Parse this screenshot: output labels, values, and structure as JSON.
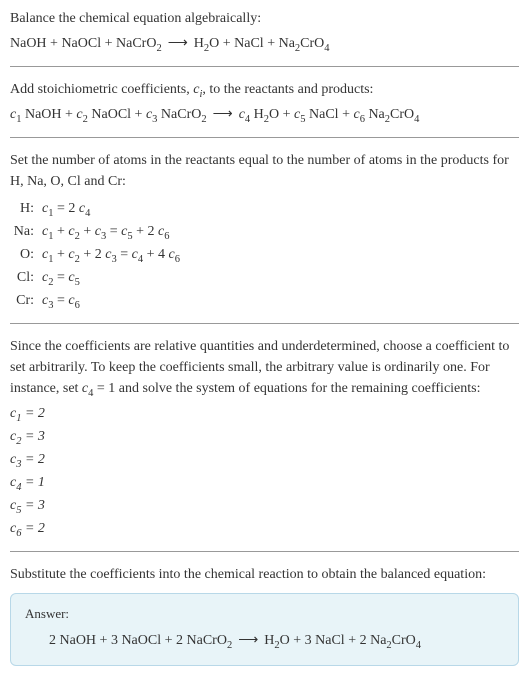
{
  "colors": {
    "text": "#333333",
    "hr": "#999999",
    "answer_bg": "#e8f4f8",
    "answer_border": "#b8d8e8"
  },
  "typography": {
    "body_fontsize": 14,
    "font_family": "Georgia, serif"
  },
  "intro": {
    "line1": "Balance the chemical equation algebraically:",
    "reactants": [
      "NaOH",
      "NaOCl",
      "NaCrO"
    ],
    "reactant_subs": [
      "",
      "",
      "2"
    ],
    "products": [
      "H",
      "O",
      "NaCl",
      "Na",
      "CrO"
    ],
    "products_full": "H₂O + NaCl + Na₂CrO₄"
  },
  "step_coeff": {
    "text": "Add stoichiometric coefficients, ",
    "ci": "c",
    "ci_sub": "i",
    "text2": ", to the reactants and products:",
    "equation_parts": {
      "c1": "c",
      "c1sub": "1",
      "r1": " NaOH + ",
      "c2": "c",
      "c2sub": "2",
      "r2": " NaOCl + ",
      "c3": "c",
      "c3sub": "3",
      "r3": " NaCrO",
      "r3sub": "2",
      "c4": "c",
      "c4sub": "4",
      "p1": " H",
      "p1sub": "2",
      "p1b": "O + ",
      "c5": "c",
      "c5sub": "5",
      "p2": " NaCl + ",
      "c6": "c",
      "c6sub": "6",
      "p3": " Na",
      "p3sub": "2",
      "p3b": "CrO",
      "p3sub2": "4"
    }
  },
  "step_atoms": {
    "text": "Set the number of atoms in the reactants equal to the number of atoms in the products for H, Na, O, Cl and Cr:",
    "rows": [
      {
        "label": "H:",
        "lhs_c": "c",
        "lhs_sub": "1",
        "eq": " = 2 ",
        "rhs_c": "c",
        "rhs_sub": "4",
        "rest": ""
      },
      {
        "label": "Na:",
        "eq_full": "c₁ + c₂ + c₃ = c₅ + 2 c₆"
      },
      {
        "label": "O:",
        "eq_full": "c₁ + c₂ + 2 c₃ = c₄ + 4 c₆"
      },
      {
        "label": "Cl:",
        "eq_full": "c₂ = c₅"
      },
      {
        "label": "Cr:",
        "eq_full": "c₃ = c₆"
      }
    ]
  },
  "step_solve": {
    "text": "Since the coefficients are relative quantities and underdetermined, choose a coefficient to set arbitrarily. To keep the coefficients small, the arbitrary value is ordinarily one. For instance, set ",
    "setvar": "c",
    "setvar_sub": "4",
    "text2": " = 1 and solve the system of equations for the remaining coefficients:",
    "coeffs": [
      {
        "c": "c",
        "sub": "1",
        "val": " = 2"
      },
      {
        "c": "c",
        "sub": "2",
        "val": " = 3"
      },
      {
        "c": "c",
        "sub": "3",
        "val": " = 2"
      },
      {
        "c": "c",
        "sub": "4",
        "val": " = 1"
      },
      {
        "c": "c",
        "sub": "5",
        "val": " = 3"
      },
      {
        "c": "c",
        "sub": "6",
        "val": " = 2"
      }
    ]
  },
  "step_sub": {
    "text": "Substitute the coefficients into the chemical reaction to obtain the balanced equation:"
  },
  "answer": {
    "label": "Answer:",
    "eq": "2 NaOH + 3 NaOCl + 2 NaCrO₂  ⟶  H₂O + 3 NaCl + 2 Na₂CrO₄"
  }
}
